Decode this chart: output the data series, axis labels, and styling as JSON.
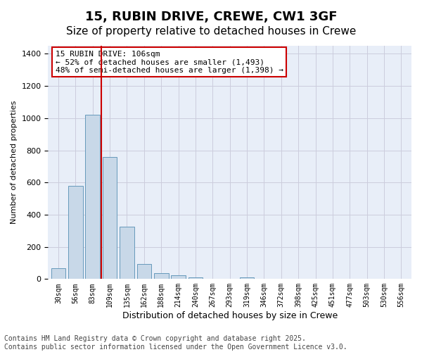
{
  "title1": "15, RUBIN DRIVE, CREWE, CW1 3GF",
  "title2": "Size of property relative to detached houses in Crewe",
  "xlabel": "Distribution of detached houses by size in Crewe",
  "ylabel": "Number of detached properties",
  "bar_values": [
    65,
    580,
    1020,
    760,
    325,
    95,
    35,
    22,
    12,
    0,
    0,
    12,
    0,
    0,
    0,
    0,
    0,
    0,
    0,
    0,
    0
  ],
  "categories": [
    "30sqm",
    "56sqm",
    "83sqm",
    "109sqm",
    "135sqm",
    "162sqm",
    "188sqm",
    "214sqm",
    "240sqm",
    "267sqm",
    "293sqm",
    "319sqm",
    "346sqm",
    "372sqm",
    "398sqm",
    "425sqm",
    "451sqm",
    "477sqm",
    "503sqm",
    "530sqm",
    "556sqm"
  ],
  "bar_color": "#c8d8e8",
  "bar_edge_color": "#6699bb",
  "vline_x": 2.5,
  "vline_color": "#cc0000",
  "annotation_box_text": "15 RUBIN DRIVE: 106sqm\n← 52% of detached houses are smaller (1,493)\n48% of semi-detached houses are larger (1,398) →",
  "box_edge_color": "#cc0000",
  "ylim": [
    0,
    1450
  ],
  "yticks": [
    0,
    200,
    400,
    600,
    800,
    1000,
    1200,
    1400
  ],
  "background_color": "#e8eef8",
  "grid_color": "#ccccdd",
  "footnote": "Contains HM Land Registry data © Crown copyright and database right 2025.\nContains public sector information licensed under the Open Government Licence v3.0.",
  "title_fontsize": 13,
  "subtitle_fontsize": 11,
  "annot_fontsize": 8,
  "footnote_fontsize": 7
}
